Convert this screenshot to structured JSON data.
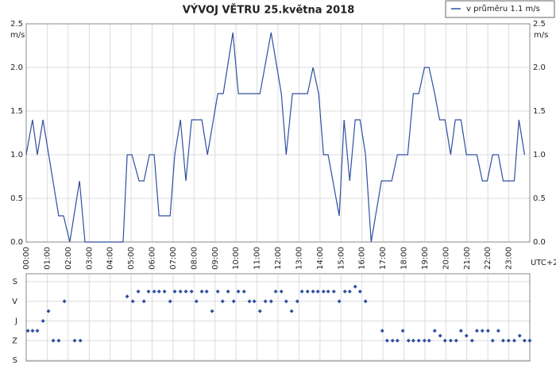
{
  "chart_data": [
    {
      "type": "line",
      "title": "VÝVOJ VĚTRU  25.května 2018",
      "y_label": "m/s",
      "x_note": "UTC+2",
      "xlim": [
        0,
        24
      ],
      "xticks": [
        {
          "value": 0,
          "label": "00:00"
        },
        {
          "value": 1,
          "label": "01:00"
        },
        {
          "value": 2,
          "label": "02:00"
        },
        {
          "value": 3,
          "label": "03:00"
        },
        {
          "value": 4,
          "label": "04:00"
        },
        {
          "value": 5,
          "label": "05:00"
        },
        {
          "value": 6,
          "label": "06:00"
        },
        {
          "value": 7,
          "label": "07:00"
        },
        {
          "value": 8,
          "label": "08:00"
        },
        {
          "value": 9,
          "label": "09:00"
        },
        {
          "value": 10,
          "label": "10:00"
        },
        {
          "value": 11,
          "label": "11:00"
        },
        {
          "value": 12,
          "label": "12:00"
        },
        {
          "value": 13,
          "label": "13:00"
        },
        {
          "value": 14,
          "label": "14:00"
        },
        {
          "value": 15,
          "label": "15:00"
        },
        {
          "value": 16,
          "label": "16:00"
        },
        {
          "value": 17,
          "label": "17:00"
        },
        {
          "value": 18,
          "label": "18:00"
        },
        {
          "value": 19,
          "label": "19:00"
        },
        {
          "value": 20,
          "label": "20:00"
        },
        {
          "value": 21,
          "label": "21:00"
        },
        {
          "value": 22,
          "label": "22:00"
        },
        {
          "value": 23,
          "label": "23:00"
        }
      ],
      "ylim": [
        0,
        2.5
      ],
      "yticks": [
        {
          "value": 0,
          "label": "0.0"
        },
        {
          "value": 0.5,
          "label": "0.5"
        },
        {
          "value": 1,
          "label": "1.0"
        },
        {
          "value": 1.5,
          "label": "1.5"
        },
        {
          "value": 2,
          "label": "2.0"
        },
        {
          "value": 2.5,
          "label": "2.5"
        }
      ],
      "grid": true,
      "legend": "top-right",
      "x": [
        0,
        0.3,
        0.53,
        0.8,
        1.55,
        1.78,
        2.08,
        2.54,
        2.8,
        4.62,
        4.81,
        5.04,
        5.38,
        5.61,
        5.87,
        6.1,
        6.33,
        6.86,
        7.08,
        7.35,
        7.61,
        7.88,
        8.37,
        8.64,
        9.13,
        9.39,
        9.85,
        10.11,
        11.14,
        11.67,
        12.16,
        12.39,
        12.69,
        13.41,
        13.67,
        13.94,
        14.17,
        14.39,
        14.92,
        15.15,
        15.42,
        15.68,
        15.91,
        16.17,
        16.44,
        16.93,
        17.42,
        17.69,
        18.18,
        18.45,
        18.71,
        18.98,
        19.2,
        19.47,
        19.7,
        19.96,
        20.23,
        20.45,
        20.72,
        20.98,
        21.48,
        21.74,
        21.97,
        22.23,
        22.5,
        22.73,
        23.26,
        23.48,
        23.75
      ],
      "series": [
        {
          "name": "v průměru 1.1 m/s",
          "color": "#2f4f9f",
          "values": [
            1.0,
            1.4,
            1.0,
            1.4,
            0.3,
            0.3,
            0.0,
            0.7,
            0.0,
            0.0,
            1.0,
            1.0,
            0.7,
            0.7,
            1.0,
            1.0,
            0.3,
            0.3,
            1.0,
            1.4,
            0.7,
            1.4,
            1.4,
            1.0,
            1.7,
            1.7,
            2.4,
            1.7,
            1.7,
            2.4,
            1.7,
            1.0,
            1.7,
            1.7,
            2.0,
            1.7,
            1.0,
            1.0,
            0.3,
            1.4,
            0.7,
            1.4,
            1.4,
            1.0,
            0.0,
            0.7,
            0.7,
            1.0,
            1.0,
            1.7,
            1.7,
            2.0,
            2.0,
            1.7,
            1.4,
            1.4,
            1.0,
            1.4,
            1.4,
            1.0,
            1.0,
            0.7,
            0.7,
            1.0,
            1.0,
            0.7,
            0.7,
            1.4,
            1.0
          ]
        }
      ]
    },
    {
      "type": "scatter",
      "xlim": [
        0,
        24
      ],
      "ylim": [
        0,
        360
      ],
      "yticks": [
        {
          "value": 0,
          "label": "S"
        },
        {
          "value": 90,
          "label": "V"
        },
        {
          "value": 180,
          "label": "J"
        },
        {
          "value": 270,
          "label": "Z"
        },
        {
          "value": 360,
          "label": "S"
        }
      ],
      "color": "#2f4f9f",
      "x": [
        0.08,
        0.3,
        0.53,
        0.8,
        1.06,
        1.29,
        1.55,
        1.82,
        2.31,
        2.58,
        4.81,
        5.08,
        5.34,
        5.61,
        5.83,
        6.1,
        6.33,
        6.59,
        6.86,
        7.08,
        7.35,
        7.61,
        7.88,
        8.11,
        8.37,
        8.6,
        8.86,
        9.13,
        9.36,
        9.62,
        9.89,
        10.11,
        10.38,
        10.64,
        10.87,
        11.14,
        11.4,
        11.67,
        11.89,
        12.16,
        12.39,
        12.65,
        12.92,
        13.14,
        13.41,
        13.67,
        13.9,
        14.17,
        14.39,
        14.66,
        14.92,
        15.19,
        15.42,
        15.68,
        15.91,
        16.17,
        16.97,
        17.2,
        17.46,
        17.69,
        17.95,
        18.22,
        18.45,
        18.71,
        18.98,
        19.2,
        19.47,
        19.73,
        19.96,
        20.23,
        20.49,
        20.72,
        20.98,
        21.25,
        21.48,
        21.74,
        22.01,
        22.23,
        22.5,
        22.73,
        22.99,
        23.26,
        23.52,
        23.75,
        24.0
      ],
      "values": [
        225,
        225,
        225,
        180,
        135,
        270,
        270,
        90,
        270,
        270,
        67.5,
        90,
        45,
        90,
        45,
        45,
        45,
        45,
        90,
        45,
        45,
        45,
        45,
        90,
        45,
        45,
        135,
        45,
        90,
        45,
        90,
        45,
        45,
        90,
        90,
        135,
        90,
        90,
        45,
        45,
        90,
        135,
        90,
        45,
        45,
        45,
        45,
        45,
        45,
        45,
        90,
        45,
        45,
        22.5,
        45,
        90,
        225,
        270,
        270,
        270,
        225,
        270,
        270,
        270,
        270,
        270,
        225,
        247.5,
        270,
        270,
        270,
        225,
        247.5,
        270,
        225,
        225,
        225,
        270,
        225,
        270,
        270,
        270,
        247.5,
        270,
        270
      ]
    }
  ]
}
